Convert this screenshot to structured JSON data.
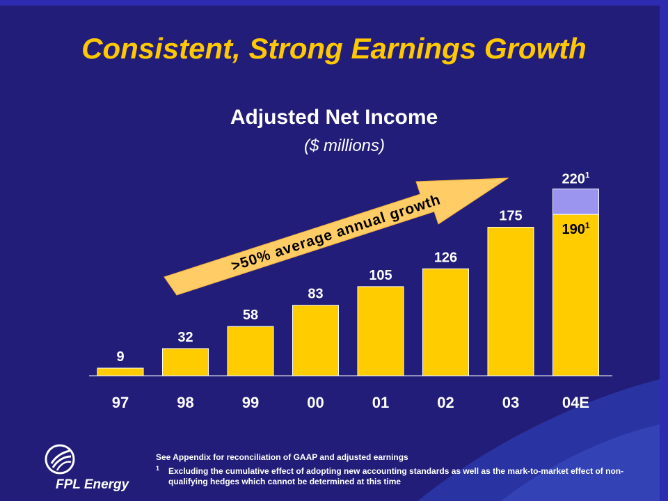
{
  "slide": {
    "title": "Consistent, Strong Earnings Growth",
    "subtitle": "Adjusted Net Income",
    "units": "($ millions)",
    "growth_arrow_label": ">50% average annual growth",
    "footnote_source": "See Appendix for reconciliation of GAAP and adjusted earnings",
    "footnote_mark": "1",
    "footnote_text": "Excluding the cumulative effect of adopting new accounting standards as well as the mark-to-market effect of non-qualifying hedges which cannot be determined at this time",
    "logo_text": "FPL Energy"
  },
  "colors": {
    "background": "#221d78",
    "frame": "#2d2cb0",
    "title": "#ffc800",
    "bar": "#ffcc00",
    "bar_extension": "#9b95f0",
    "arrow": "#ffcc66",
    "text_dark": "#000000",
    "text_light": "#ffffff"
  },
  "chart_data": {
    "type": "bar",
    "title": "Adjusted Net Income",
    "subtitle": "($ millions)",
    "categories": [
      "97",
      "98",
      "99",
      "00",
      "01",
      "02",
      "03",
      "04E"
    ],
    "values": [
      9,
      32,
      58,
      83,
      105,
      126,
      175,
      190
    ],
    "value_labels": [
      "9",
      "32",
      "58",
      "83",
      "105",
      "126",
      "175",
      "190"
    ],
    "value_label_superscripts": [
      "",
      "",
      "",
      "",
      "",
      "",
      "",
      "1"
    ],
    "stacked_extension": {
      "category": "04E",
      "base": 190,
      "total": 220,
      "total_label": "220",
      "total_label_superscript": "1"
    },
    "ylim": [
      0,
      240
    ],
    "grid": false,
    "annotations": [
      ">50% average annual growth"
    ]
  }
}
